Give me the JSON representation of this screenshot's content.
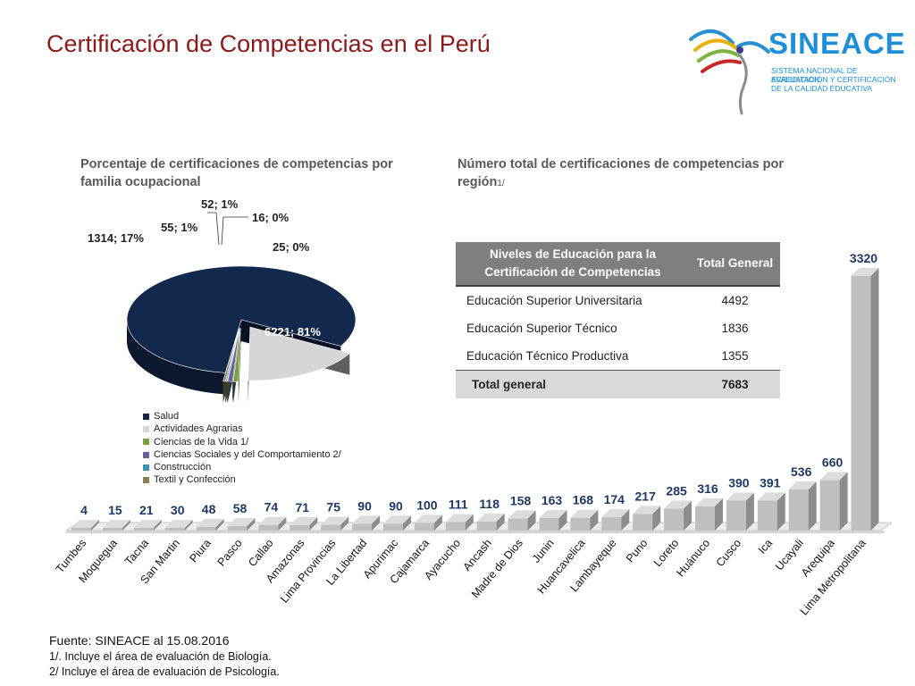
{
  "title": "Certificación de Competencias en el Perú",
  "logo": {
    "word": "SINEACE",
    "lines": [
      "SISTEMA NACIONAL DE EVALUACIÓN,",
      "ACREDITACIÓN Y CERTIFICACIÓN",
      "DE LA CALIDAD EDUCATIVA"
    ]
  },
  "pie_subtitle": "Porcentaje de certificaciones de competencias por familia ocupacional",
  "region_subtitle": "Número total de certificaciones de competencias por región",
  "region_subtitle_sup": "1/",
  "education_table": {
    "headers": [
      "Niveles de Educación para la Certificación de Competencias",
      "Total General"
    ],
    "rows": [
      {
        "level": "Educación Superior Universitaria",
        "total": "4492"
      },
      {
        "level": "Educación Superior Técnico",
        "total": "1836"
      },
      {
        "level": "Educación Técnico Productiva",
        "total": "1355"
      }
    ],
    "total_label": "Total general",
    "total_value": "7683"
  },
  "footer": {
    "source": "Fuente: SINEACE al  15.08.2016",
    "note1": "1/. Incluye  el área de evaluación de Biología.",
    "note2": "2/ Incluye  el área  de evaluación de Psicología."
  },
  "chart_data": [
    {
      "type": "pie",
      "categories": [
        "Salud",
        "Actividades Agrarias",
        "Ciencias de la Vida 1/",
        "Ciencias Sociales y del Comportamiento 2/",
        "Construcción",
        "Textil y Confección"
      ],
      "values": [
        6221,
        1314,
        55,
        52,
        16,
        25
      ],
      "data_labels": [
        "6221; 81%",
        "1314; 17%",
        "55; 1%",
        "52; 1%",
        "16; 0%",
        "25; 0%"
      ],
      "colors": [
        "#13284d",
        "#d6d6d6",
        "#77a03f",
        "#6d5f9e",
        "#3a96ad",
        "#8a7f52"
      ],
      "legend_position": "bottom"
    },
    {
      "type": "bar",
      "categories": [
        "Tumbes",
        "Moquegua",
        "Tacna",
        "San Martin",
        "Piura",
        "Pasco",
        "Callao",
        "Amazonas",
        "Lima Provincias",
        "La Libertad",
        "Apurimac",
        "Cajamarca",
        "Ayacucho",
        "Ancash",
        "Madre de Dios",
        "Junin",
        "Huancavelica",
        "Lambayeque",
        "Puno",
        "Loreto",
        "Huánuco",
        "Cusco",
        "Ica",
        "Ucayali",
        "Arequipa",
        "Lima Metropolitana"
      ],
      "values": [
        4,
        15,
        21,
        30,
        48,
        58,
        74,
        71,
        75,
        90,
        90,
        100,
        111,
        118,
        158,
        163,
        168,
        174,
        217,
        285,
        316,
        390,
        391,
        536,
        660,
        3320
      ],
      "ylim": [
        0,
        3320
      ],
      "grid": false,
      "colors": {
        "bar": "#bfbfbf",
        "label": "#1f3864"
      }
    }
  ]
}
